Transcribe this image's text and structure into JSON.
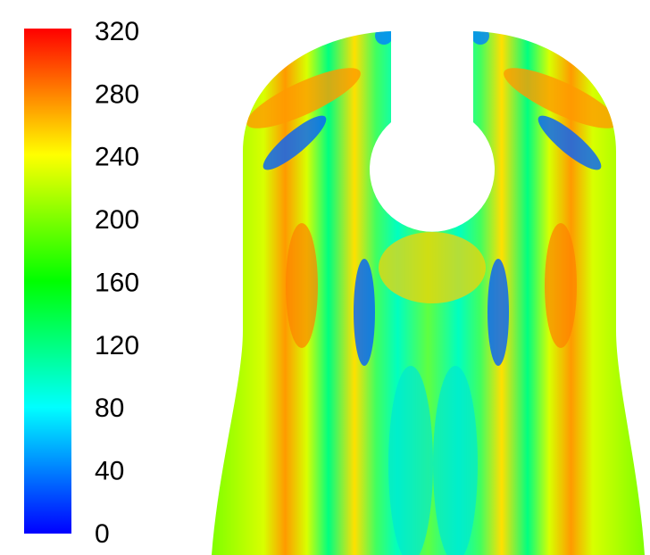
{
  "chart_data": {
    "type": "contour",
    "zlim": [
      0,
      320
    ],
    "zticks": [
      0,
      40,
      80,
      120,
      160,
      200,
      240,
      280,
      320
    ],
    "colors": [
      "#0000ff",
      "#00ffff",
      "#00ff00",
      "#ffff00",
      "#ff0000"
    ]
  }
}
